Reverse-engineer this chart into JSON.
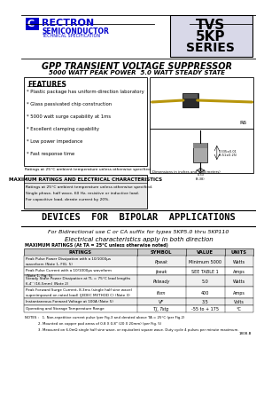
{
  "bg_color": "#ffffff",
  "blue": "#0000cc",
  "light_blue_bg": "#d8d8e8",
  "gray_box": "#e8e8e8",
  "table_header_bg": "#cccccc",
  "title_main": "GPP TRANSIENT VOLTAGE SUPPRESSOR",
  "title_sub": "5000 WATT PEAK POWER  5.0 WATT STEADY STATE",
  "company": "RECTRON",
  "company_sub": "SEMICONDUCTOR",
  "company_sub2": "TECHNICAL SPECIFICATION",
  "series_line1": "TVS",
  "series_line2": "5KP",
  "series_line3": "SERIES",
  "features_title": "FEATURES",
  "features": [
    "* Plastic package has uniform-direction laboratory",
    "* Glass passivated chip construction",
    "* 5000 watt surge capability at 1ms",
    "* Excellent clamping capability",
    "* Low power impedance",
    "* Fast response time"
  ],
  "ratings_note": "Ratings at 25°C ambient temperature unless otherwise specified.",
  "max_ratings_title": "MAXIMUM RATINGS AND ELECTRICAL CHARACTERISTICS",
  "max_ratings_note": "Ratings at 25°C ambient temperature unless otherwise specified.",
  "max_ratings_note2": "Single phase, half wave, 60 Hz, resistive or inductive load.",
  "max_ratings_note3": "For capacitive load, derate current by 20%.",
  "devices_title": "DEVICES  FOR  BIPOLAR  APPLICATIONS",
  "bidirectional": "For Bidirectional use C or CA suffix for types 5KP5.0 thru 5KP110",
  "electrical": "Electrical characteristics apply in both direction",
  "table_header": "MAXIMUM RATINGS (At TA = 25°C unless otherwise noted)",
  "table_cols": [
    "RATINGS",
    "SYMBOL",
    "VALUE",
    "UNITS"
  ],
  "table_rows": [
    [
      "Peak Pulse Power Dissipation with a 10/1000μs\nwaveform (Note 1, FIG. 5)",
      "Ppeak",
      "Minimum 5000",
      "Watts"
    ],
    [
      "Peak Pulse Current with a 10/1000μs waveform\n(Note 1, Fig. 5)",
      "Ipeak",
      "SEE TABLE 1",
      "Amps"
    ],
    [
      "Steady State Power Dissipation at TL = 75°C lead lengths\n6.4'' (16.5mm) (Note 2)",
      "Psteady",
      "5.0",
      "Watts"
    ],
    [
      "Peak Forward Surge Current, 8.3ms (single half sine wave)\nsuperimposed on rated load) (JEDEC METHOD C) (Note 3)",
      "Ifsm",
      "400",
      "Amps"
    ],
    [
      "Instantaneous Forward Voltage at 100A (Note 5)",
      "VF",
      "3.5",
      "Volts"
    ],
    [
      "Operating and Storage Temperature Range",
      "TJ, Tstg",
      "-55 to + 175",
      "°C"
    ]
  ],
  "notes": [
    "NOTES :   1. Non-repetitive current pulse (per Fig.3 and derated above TA = 25°C (per Fig.2)",
    "            2. Mounted on copper pad areas of 0.8 X 0.8\" (20 X 20mm) (per Fig. 5)",
    "            3. Measured on 6.0mΩ single half sine wave, or equivalent square wave. Duty cycle 4 pulses per minute maximum."
  ],
  "note_ref": "1808.B",
  "ref_code": "R6"
}
